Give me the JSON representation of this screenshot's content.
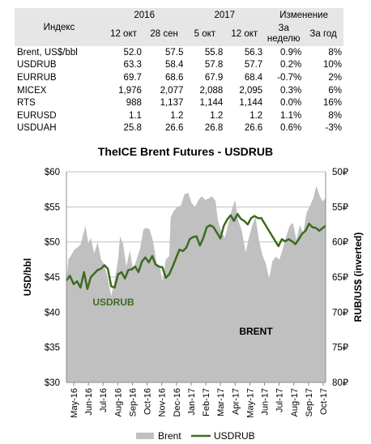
{
  "table": {
    "col_index": "Индекс",
    "year_2016": "2016",
    "year_2017": "2017",
    "col_change": "Изменение",
    "sub_headers": [
      "12 окт",
      "28 сен",
      "5 окт",
      "12 окт",
      "За неделю",
      "За год"
    ],
    "rows": [
      {
        "name": "Brent, US$/bbl",
        "v": [
          "52.0",
          "57.5",
          "55.8",
          "56.3",
          "0.9%",
          "8%"
        ]
      },
      {
        "name": "USDRUB",
        "v": [
          "63.3",
          "58.4",
          "57.8",
          "57.7",
          "0.2%",
          "10%"
        ]
      },
      {
        "name": "EURRUB",
        "v": [
          "69.7",
          "68.6",
          "67.9",
          "68.4",
          "-0.7%",
          "2%"
        ]
      },
      {
        "name": "MICEX",
        "v": [
          "1,976",
          "2,077",
          "2,088",
          "2,095",
          "0.3%",
          "6%"
        ]
      },
      {
        "name": "RTS",
        "v": [
          "988",
          "1,137",
          "1,144",
          "1,144",
          "0.0%",
          "16%"
        ]
      },
      {
        "name": "EURUSD",
        "v": [
          "1.1",
          "1.2",
          "1.2",
          "1.2",
          "1.1%",
          "8%"
        ]
      },
      {
        "name": "USDUAH",
        "v": [
          "25.8",
          "26.6",
          "26.8",
          "26.6",
          "0.6%",
          "-3%"
        ]
      }
    ]
  },
  "chart_data": {
    "type": "area",
    "title": "TheICE Brent Futures - USDRUB",
    "ylabel_left": "USD/bbl",
    "ylabel_right": "RUB/US$ (inverted)",
    "ylim_left": [
      30,
      60
    ],
    "ylim_right": [
      80,
      50
    ],
    "left_ticks": [
      "$30",
      "$35",
      "$40",
      "$45",
      "$50",
      "$55",
      "$60"
    ],
    "left_tick_values": [
      30,
      35,
      40,
      45,
      50,
      55,
      60
    ],
    "right_ticks": [
      "80₽",
      "75₽",
      "70₽",
      "65₽",
      "60₽",
      "55₽",
      "50₽"
    ],
    "right_tick_values": [
      80,
      75,
      70,
      65,
      60,
      55,
      50
    ],
    "x_labels": [
      "May-16",
      "Jun-16",
      "Jul-16",
      "Aug-16",
      "Sep-16",
      "Oct-16",
      "Nov-16",
      "Dec-16",
      "Jan-17",
      "Feb-17",
      "Mar-17",
      "Apr-17",
      "May-17",
      "Jun-17",
      "Jul-17",
      "Aug-17",
      "Sep-17",
      "Oct-17"
    ],
    "x_start": "2016-05-01",
    "x_end": "2017-10-15",
    "grid": "horizontal",
    "legend_placement": "bottom",
    "annotations": [
      {
        "text": "USDRUB",
        "color": "#3d6b21"
      },
      {
        "text": "BRENT",
        "color": "#000000"
      }
    ],
    "series": [
      {
        "name": "Brent",
        "color": "#c0c0c0",
        "axis": "left",
        "points": [
          [
            "2016-05-01",
            44.5
          ],
          [
            "2016-05-05",
            47.5
          ],
          [
            "2016-05-10",
            48.0
          ],
          [
            "2016-05-16",
            48.8
          ],
          [
            "2016-05-23",
            49.2
          ],
          [
            "2016-05-30",
            49.6
          ],
          [
            "2016-06-06",
            51.5
          ],
          [
            "2016-06-09",
            52.3
          ],
          [
            "2016-06-15",
            49.8
          ],
          [
            "2016-06-20",
            50.6
          ],
          [
            "2016-06-27",
            48.4
          ],
          [
            "2016-07-04",
            50.0
          ],
          [
            "2016-07-11",
            47.5
          ],
          [
            "2016-07-18",
            46.8
          ],
          [
            "2016-07-25",
            44.8
          ],
          [
            "2016-08-01",
            42.3
          ],
          [
            "2016-08-08",
            44.5
          ],
          [
            "2016-08-15",
            47.5
          ],
          [
            "2016-08-19",
            50.8
          ],
          [
            "2016-08-25",
            49.8
          ],
          [
            "2016-09-01",
            46.5
          ],
          [
            "2016-09-08",
            48.8
          ],
          [
            "2016-09-15",
            46.0
          ],
          [
            "2016-09-22",
            47.5
          ],
          [
            "2016-09-29",
            49.0
          ],
          [
            "2016-10-06",
            51.8
          ],
          [
            "2016-10-12",
            52.0
          ],
          [
            "2016-10-19",
            51.8
          ],
          [
            "2016-10-26",
            50.0
          ],
          [
            "2016-11-02",
            47.0
          ],
          [
            "2016-11-09",
            46.5
          ],
          [
            "2016-11-14",
            44.4
          ],
          [
            "2016-11-21",
            47.5
          ],
          [
            "2016-11-28",
            48.0
          ],
          [
            "2016-12-01",
            53.5
          ],
          [
            "2016-12-08",
            54.5
          ],
          [
            "2016-12-15",
            55.0
          ],
          [
            "2016-12-22",
            55.2
          ],
          [
            "2016-12-29",
            56.8
          ],
          [
            "2017-01-06",
            57.0
          ],
          [
            "2017-01-13",
            55.5
          ],
          [
            "2017-01-20",
            55.0
          ],
          [
            "2017-01-27",
            56.0
          ],
          [
            "2017-02-03",
            56.5
          ],
          [
            "2017-02-10",
            56.0
          ],
          [
            "2017-02-17",
            56.2
          ],
          [
            "2017-02-24",
            56.5
          ],
          [
            "2017-03-03",
            55.8
          ],
          [
            "2017-03-08",
            53.0
          ],
          [
            "2017-03-15",
            51.5
          ],
          [
            "2017-03-22",
            50.6
          ],
          [
            "2017-03-29",
            52.5
          ],
          [
            "2017-04-05",
            54.5
          ],
          [
            "2017-04-12",
            56.0
          ],
          [
            "2017-04-19",
            53.0
          ],
          [
            "2017-04-26",
            51.6
          ],
          [
            "2017-05-04",
            48.5
          ],
          [
            "2017-05-10",
            50.5
          ],
          [
            "2017-05-17",
            52.3
          ],
          [
            "2017-05-24",
            53.6
          ],
          [
            "2017-05-31",
            50.3
          ],
          [
            "2017-06-07",
            48.2
          ],
          [
            "2017-06-14",
            47.0
          ],
          [
            "2017-06-21",
            44.8
          ],
          [
            "2017-06-28",
            47.3
          ],
          [
            "2017-07-05",
            47.9
          ],
          [
            "2017-07-12",
            47.5
          ],
          [
            "2017-07-19",
            49.0
          ],
          [
            "2017-07-26",
            50.8
          ],
          [
            "2017-08-02",
            52.3
          ],
          [
            "2017-08-09",
            52.7
          ],
          [
            "2017-08-16",
            50.3
          ],
          [
            "2017-08-23",
            52.4
          ],
          [
            "2017-08-30",
            51.3
          ],
          [
            "2017-09-06",
            54.2
          ],
          [
            "2017-09-13",
            55.2
          ],
          [
            "2017-09-20",
            56.3
          ],
          [
            "2017-09-26",
            58.0
          ],
          [
            "2017-10-03",
            56.5
          ],
          [
            "2017-10-09",
            55.8
          ],
          [
            "2017-10-15",
            56.3
          ]
        ]
      },
      {
        "name": "USDRUB",
        "color": "#3d6b21",
        "axis": "right",
        "points": [
          [
            "2016-05-01",
            65.5
          ],
          [
            "2016-05-08",
            64.8
          ],
          [
            "2016-05-16",
            66.0
          ],
          [
            "2016-05-23",
            65.6
          ],
          [
            "2016-05-30",
            66.5
          ],
          [
            "2016-06-06",
            64.3
          ],
          [
            "2016-06-13",
            66.7
          ],
          [
            "2016-06-20",
            65.0
          ],
          [
            "2016-06-27",
            64.5
          ],
          [
            "2016-07-04",
            64.0
          ],
          [
            "2016-07-11",
            63.8
          ],
          [
            "2016-07-18",
            63.3
          ],
          [
            "2016-07-25",
            63.8
          ],
          [
            "2016-08-01",
            66.3
          ],
          [
            "2016-08-08",
            66.5
          ],
          [
            "2016-08-15",
            64.6
          ],
          [
            "2016-08-22",
            64.3
          ],
          [
            "2016-08-29",
            65.2
          ],
          [
            "2016-09-05",
            64.0
          ],
          [
            "2016-09-12",
            63.9
          ],
          [
            "2016-09-19",
            63.5
          ],
          [
            "2016-09-26",
            64.3
          ],
          [
            "2016-10-03",
            62.8
          ],
          [
            "2016-10-10",
            62.2
          ],
          [
            "2016-10-17",
            62.9
          ],
          [
            "2016-10-24",
            62.0
          ],
          [
            "2016-10-31",
            63.2
          ],
          [
            "2016-11-07",
            63.5
          ],
          [
            "2016-11-14",
            63.6
          ],
          [
            "2016-11-21",
            65.1
          ],
          [
            "2016-11-28",
            64.6
          ],
          [
            "2016-12-05",
            63.5
          ],
          [
            "2016-12-12",
            62.3
          ],
          [
            "2016-12-19",
            61.1
          ],
          [
            "2016-12-26",
            61.3
          ],
          [
            "2017-01-02",
            60.8
          ],
          [
            "2017-01-09",
            59.6
          ],
          [
            "2017-01-16",
            59.3
          ],
          [
            "2017-01-23",
            59.2
          ],
          [
            "2017-01-30",
            60.5
          ],
          [
            "2017-02-06",
            59.4
          ],
          [
            "2017-02-13",
            57.9
          ],
          [
            "2017-02-20",
            57.6
          ],
          [
            "2017-02-27",
            57.9
          ],
          [
            "2017-03-06",
            58.7
          ],
          [
            "2017-03-13",
            59.5
          ],
          [
            "2017-03-20",
            57.7
          ],
          [
            "2017-03-27",
            56.8
          ],
          [
            "2017-04-03",
            56.2
          ],
          [
            "2017-04-10",
            57.0
          ],
          [
            "2017-04-17",
            56.0
          ],
          [
            "2017-04-24",
            56.7
          ],
          [
            "2017-05-01",
            57.0
          ],
          [
            "2017-05-08",
            57.5
          ],
          [
            "2017-05-15",
            56.6
          ],
          [
            "2017-05-22",
            56.3
          ],
          [
            "2017-05-29",
            56.6
          ],
          [
            "2017-06-05",
            56.6
          ],
          [
            "2017-06-12",
            57.4
          ],
          [
            "2017-06-19",
            58.2
          ],
          [
            "2017-06-26",
            59.0
          ],
          [
            "2017-07-03",
            59.8
          ],
          [
            "2017-07-10",
            60.6
          ],
          [
            "2017-07-17",
            59.6
          ],
          [
            "2017-07-24",
            59.9
          ],
          [
            "2017-07-31",
            59.6
          ],
          [
            "2017-08-07",
            59.9
          ],
          [
            "2017-08-14",
            60.3
          ],
          [
            "2017-08-21",
            59.6
          ],
          [
            "2017-08-28",
            58.8
          ],
          [
            "2017-09-04",
            58.4
          ],
          [
            "2017-09-11",
            57.4
          ],
          [
            "2017-09-18",
            57.9
          ],
          [
            "2017-09-25",
            58.0
          ],
          [
            "2017-10-02",
            58.4
          ],
          [
            "2017-10-09",
            58.0
          ],
          [
            "2017-10-15",
            57.7
          ]
        ]
      }
    ]
  }
}
